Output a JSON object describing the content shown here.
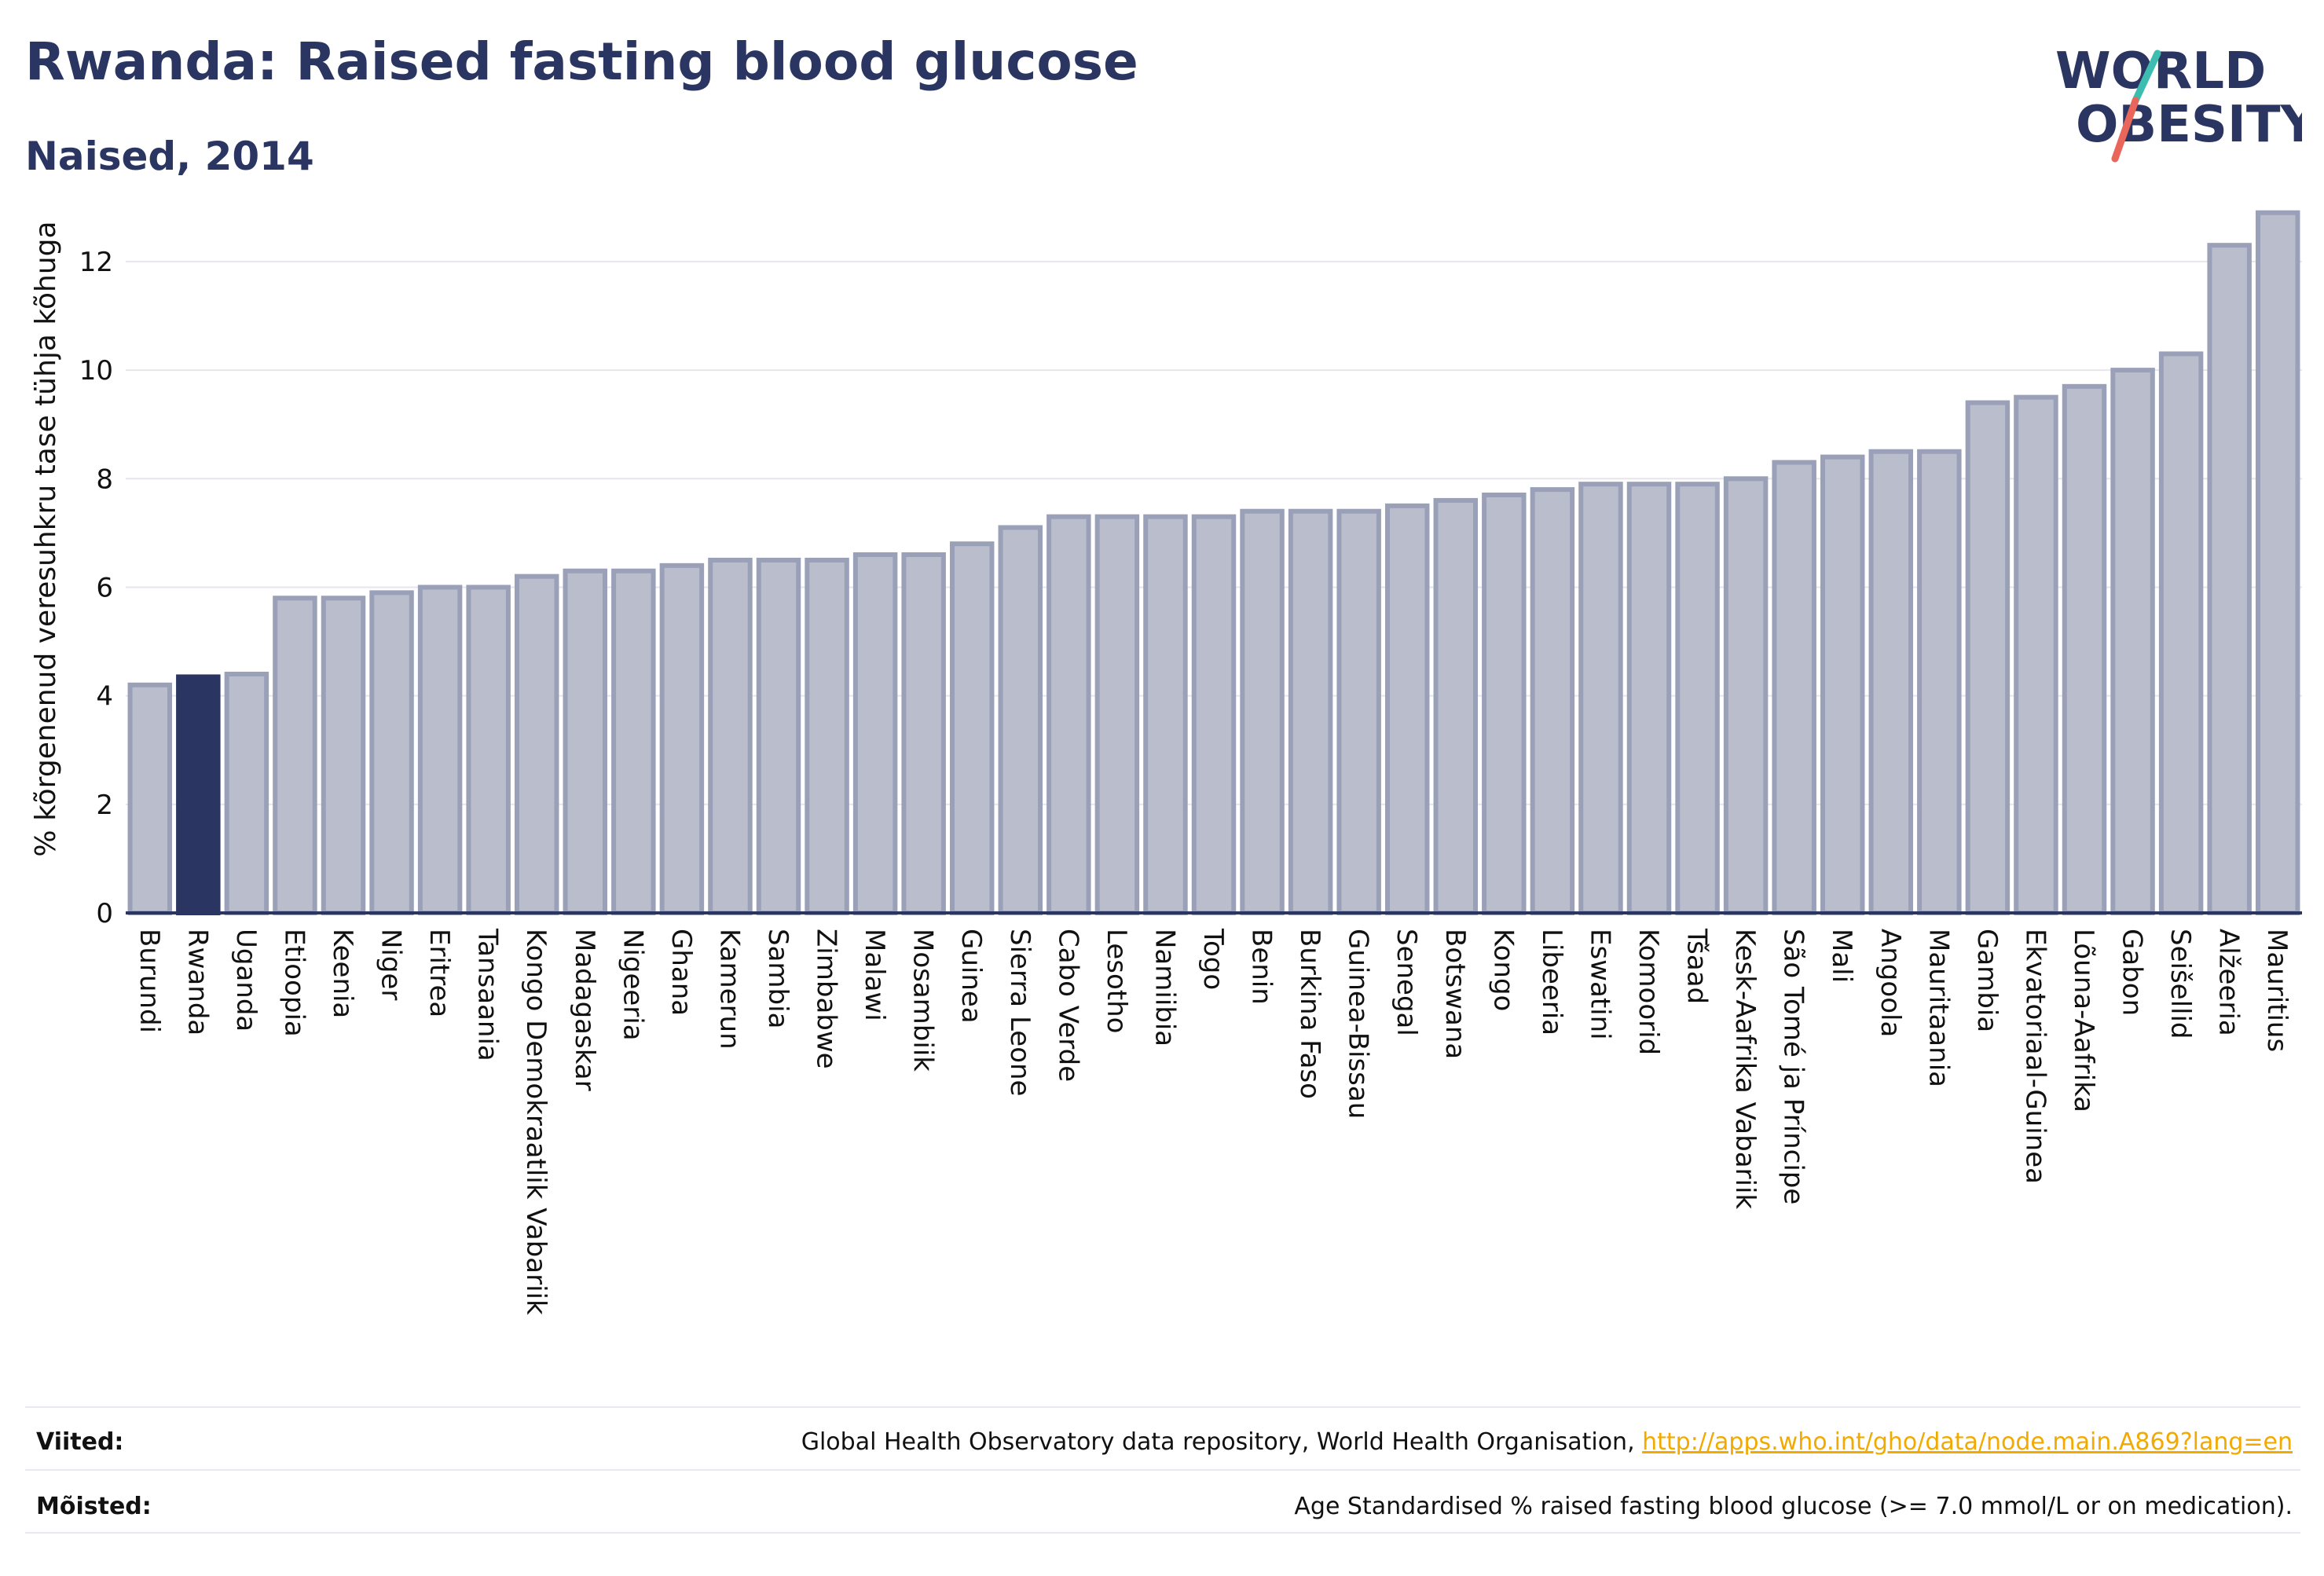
{
  "header": {
    "title": "Rwanda: Raised fasting blood glucose",
    "subtitle": "Naised, 2014"
  },
  "logo": {
    "line1": "WORLD",
    "line2": "OBESITY"
  },
  "chart_data": {
    "type": "bar",
    "ylabel": "% kõrgenenud veresuhkru tase tühja kõhuga",
    "xlabel": "",
    "ylim": [
      0,
      13.2
    ],
    "yticks": [
      0,
      2,
      4,
      6,
      8,
      10,
      12
    ],
    "grid": true,
    "highlight": "Rwanda",
    "colors": {
      "bar": "#b9bdcc",
      "bar_edge": "#9aa0b8",
      "highlight": "#2b3561",
      "axis": "#2b3561",
      "grid": "#e6e6ec"
    },
    "categories": [
      "Burundi",
      "Rwanda",
      "Uganda",
      "Etioopia",
      "Keenia",
      "Niger",
      "Eritrea",
      "Tansaania",
      "Kongo Demokraatlik Vabariik",
      "Madagaskar",
      "Nigeeria",
      "Ghana",
      "Kamerun",
      "Sambia",
      "Zimbabwe",
      "Malawi",
      "Mosambiik",
      "Guinea",
      "Sierra Leone",
      "Cabo Verde",
      "Lesotho",
      "Namiibia",
      "Togo",
      "Benin",
      "Burkina Faso",
      "Guinea-Bissau",
      "Senegal",
      "Botswana",
      "Kongo",
      "Libeeria",
      "Eswatini",
      "Komoorid",
      "Tšaad",
      "Kesk-Aafrika Vabariik",
      "São Tomé ja Príncipe",
      "Mali",
      "Angoola",
      "Mauritaania",
      "Gambia",
      "Ekvatoriaal-Guinea",
      "Lõuna-Aafrika",
      "Gabon",
      "Seišellid",
      "Alžeeria",
      "Mauritius"
    ],
    "values": [
      4.2,
      4.35,
      4.4,
      5.8,
      5.8,
      5.9,
      6.0,
      6.0,
      6.2,
      6.3,
      6.3,
      6.4,
      6.5,
      6.5,
      6.5,
      6.6,
      6.6,
      6.8,
      7.1,
      7.3,
      7.3,
      7.3,
      7.3,
      7.4,
      7.4,
      7.4,
      7.5,
      7.6,
      7.7,
      7.8,
      7.9,
      7.9,
      7.9,
      8.0,
      8.3,
      8.4,
      8.5,
      8.5,
      9.4,
      9.5,
      9.7,
      10.0,
      10.3,
      12.3,
      12.9
    ]
  },
  "footer": {
    "refs_label": "Viited:",
    "refs_text": "Global Health Observatory data repository, World Health Organisation, ",
    "refs_link": "http://apps.who.int/gho/data/node.main.A869?lang=en",
    "defs_label": "Mõisted:",
    "defs_text": "Age Standardised % raised fasting blood glucose (>= 7.0 mmol/L or on medication)."
  }
}
